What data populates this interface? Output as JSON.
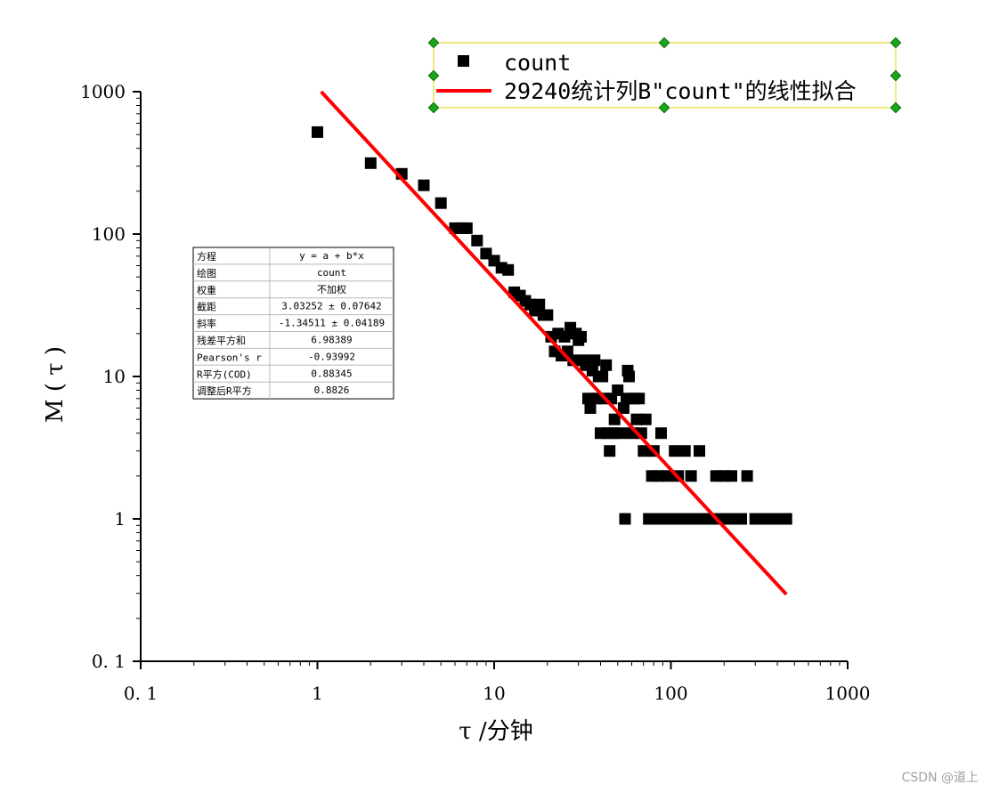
{
  "chart_data": {
    "type": "scatter",
    "x_scale": "log",
    "y_scale": "log",
    "xlim": [
      0.1,
      1000
    ],
    "ylim": [
      0.1,
      1000
    ],
    "xlabel": "τ /分钟",
    "ylabel": "M ( τ )",
    "x_ticks": [
      "0. 1",
      "1",
      "10",
      "100",
      "1000"
    ],
    "y_ticks": [
      "0. 1",
      "1",
      "10",
      "100",
      "1000"
    ],
    "grid": false,
    "legend_position": "top-right",
    "series": [
      {
        "name": "count",
        "marker": "square",
        "color": "#000000",
        "points": [
          [
            1,
            520
          ],
          [
            2,
            315
          ],
          [
            3,
            265
          ],
          [
            4,
            220
          ],
          [
            5,
            165
          ],
          [
            6,
            110
          ],
          [
            6.5,
            110
          ],
          [
            7,
            110
          ],
          [
            8,
            90
          ],
          [
            9,
            73
          ],
          [
            10,
            65
          ],
          [
            11,
            58
          ],
          [
            12,
            56
          ],
          [
            13,
            39
          ],
          [
            14,
            37
          ],
          [
            15,
            34
          ],
          [
            16,
            32
          ],
          [
            17,
            29
          ],
          [
            18,
            32
          ],
          [
            19,
            27
          ],
          [
            20,
            27
          ],
          [
            21,
            19
          ],
          [
            22,
            15
          ],
          [
            23,
            20
          ],
          [
            24,
            14
          ],
          [
            25,
            19
          ],
          [
            26,
            15
          ],
          [
            27,
            22
          ],
          [
            28,
            13
          ],
          [
            29,
            20
          ],
          [
            30,
            18
          ],
          [
            31,
            19
          ],
          [
            32,
            13
          ],
          [
            33,
            12
          ],
          [
            34,
            7
          ],
          [
            35,
            6
          ],
          [
            36,
            11
          ],
          [
            37,
            13
          ],
          [
            38,
            7
          ],
          [
            39,
            10
          ],
          [
            40,
            4
          ],
          [
            41,
            10
          ],
          [
            42,
            7
          ],
          [
            43,
            12
          ],
          [
            44,
            4
          ],
          [
            45,
            3
          ],
          [
            46,
            7
          ],
          [
            47,
            4
          ],
          [
            48,
            5
          ],
          [
            50,
            8
          ],
          [
            52,
            4
          ],
          [
            54,
            6
          ],
          [
            55,
            1
          ],
          [
            56,
            7
          ],
          [
            57,
            11
          ],
          [
            58,
            10
          ],
          [
            60,
            4
          ],
          [
            62,
            7
          ],
          [
            64,
            5
          ],
          [
            66,
            7
          ],
          [
            68,
            4
          ],
          [
            70,
            3
          ],
          [
            72,
            5
          ],
          [
            75,
            1
          ],
          [
            78,
            2
          ],
          [
            80,
            3
          ],
          [
            82,
            1
          ],
          [
            85,
            2
          ],
          [
            88,
            4
          ],
          [
            90,
            1
          ],
          [
            95,
            2
          ],
          [
            100,
            1
          ],
          [
            105,
            3
          ],
          [
            110,
            2
          ],
          [
            115,
            1
          ],
          [
            120,
            3
          ],
          [
            125,
            1
          ],
          [
            130,
            2
          ],
          [
            135,
            1
          ],
          [
            140,
            1
          ],
          [
            145,
            3
          ],
          [
            150,
            1
          ],
          [
            160,
            1
          ],
          [
            170,
            1
          ],
          [
            180,
            2
          ],
          [
            190,
            1
          ],
          [
            200,
            2
          ],
          [
            210,
            1
          ],
          [
            220,
            2
          ],
          [
            230,
            1
          ],
          [
            250,
            1
          ],
          [
            270,
            2
          ],
          [
            300,
            1
          ],
          [
            330,
            1
          ],
          [
            360,
            1
          ],
          [
            400,
            1
          ],
          [
            450,
            1
          ]
        ]
      },
      {
        "name": "29240统计列B\"count\"的线性拟合",
        "type": "line",
        "color": "#ff0000",
        "points": [
          [
            1.05,
            1000
          ],
          [
            450,
            0.295
          ]
        ]
      }
    ],
    "fit_table": {
      "rows": [
        [
          "方程",
          "y = a + b*x"
        ],
        [
          "绘图",
          "count"
        ],
        [
          "权重",
          "不加权"
        ],
        [
          "截距",
          "3.03252 ± 0.07642"
        ],
        [
          "斜率",
          "-1.34511 ± 0.04189"
        ],
        [
          "残差平方和",
          "6.98389"
        ],
        [
          "Pearson's r",
          "-0.93992"
        ],
        [
          "R平方(COD)",
          "0.88345"
        ],
        [
          "调整后R平方",
          "0.8826"
        ]
      ]
    }
  },
  "watermark": "CSDN @道上"
}
